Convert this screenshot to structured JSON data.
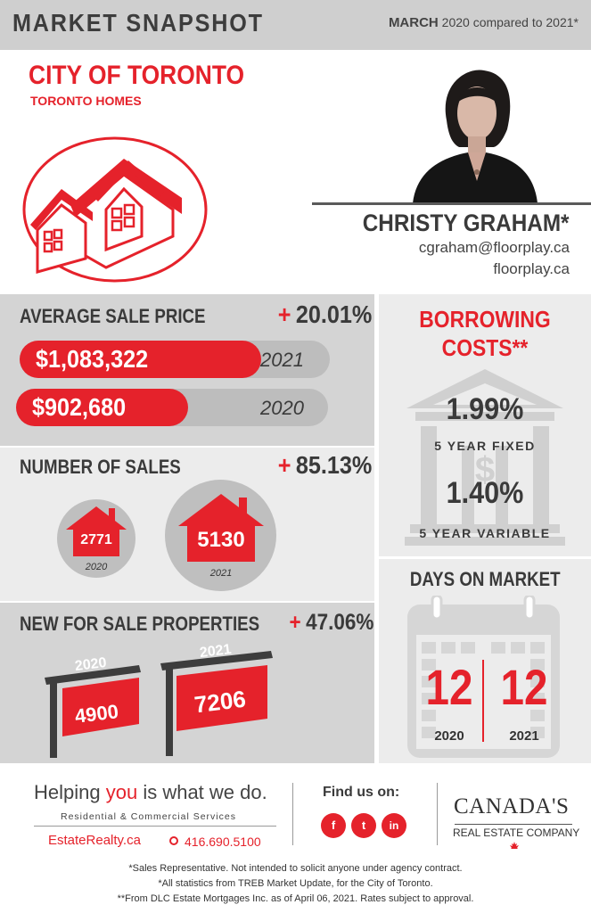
{
  "header": {
    "title": "MARKET SNAPSHOT",
    "month": "MARCH",
    "comparison": "2020 compared to 2021*"
  },
  "city": {
    "name": "CITY OF TORONTO",
    "subtitle": "TORONTO HOMES"
  },
  "agent": {
    "name": "CHRISTY GRAHAM*",
    "email": "cgraham@floorplay.ca",
    "website": "floorplay.ca"
  },
  "average_sale_price": {
    "title": "AVERAGE SALE PRICE",
    "plus": "+",
    "change": "20.01%",
    "rows": [
      {
        "value": "$1,083,322",
        "year": "2021",
        "fill": 0.78
      },
      {
        "value": "$902,680",
        "year": "2020",
        "fill": 0.55
      }
    ]
  },
  "number_of_sales": {
    "title": "NUMBER OF SALES",
    "plus": "+",
    "change": "85.13%",
    "items": [
      {
        "value": "2771",
        "year": "2020"
      },
      {
        "value": "5130",
        "year": "2021"
      }
    ]
  },
  "new_for_sale": {
    "title": "NEW FOR SALE PROPERTIES",
    "plus": "+",
    "change": "47.06%",
    "items": [
      {
        "value": "4900",
        "year": "2020"
      },
      {
        "value": "7206",
        "year": "2021"
      }
    ]
  },
  "borrowing": {
    "title_line1": "BORROWING",
    "title_line2": "COSTS**",
    "rates": [
      {
        "value": "1.99%",
        "label": "5 YEAR FIXED"
      },
      {
        "value": "1.40%",
        "label": "5 YEAR VARIABLE"
      }
    ]
  },
  "days_on_market": {
    "title": "DAYS ON MARKET",
    "items": [
      {
        "value": "12",
        "year": "2020"
      },
      {
        "value": "12",
        "year": "2021"
      }
    ]
  },
  "footer": {
    "slogan_pre": "Helping ",
    "slogan_hl": "you",
    "slogan_post": " is what we do.",
    "services": "Residential & Commercial Services",
    "site": "EstateRealty.ca",
    "phone": "416.690.5100",
    "find_us": "Find us on:",
    "social": [
      "f",
      "t",
      "in"
    ],
    "brand_name": "CANADA'S",
    "brand_sub": "REAL ESTATE COMPANY",
    "notes": [
      "*Sales Representative. Not intended to solicit anyone under agency contract.",
      "*All statistics from TREB Market Update, for the City of Toronto.",
      "**From DLC Estate Mortgages Inc. as of April 06, 2021. Rates subject to approval."
    ]
  },
  "colors": {
    "accent": "#e5222b",
    "dark_text": "#3a3a3a",
    "panel_dark": "#d4d4d4",
    "panel_light": "#ececec"
  }
}
